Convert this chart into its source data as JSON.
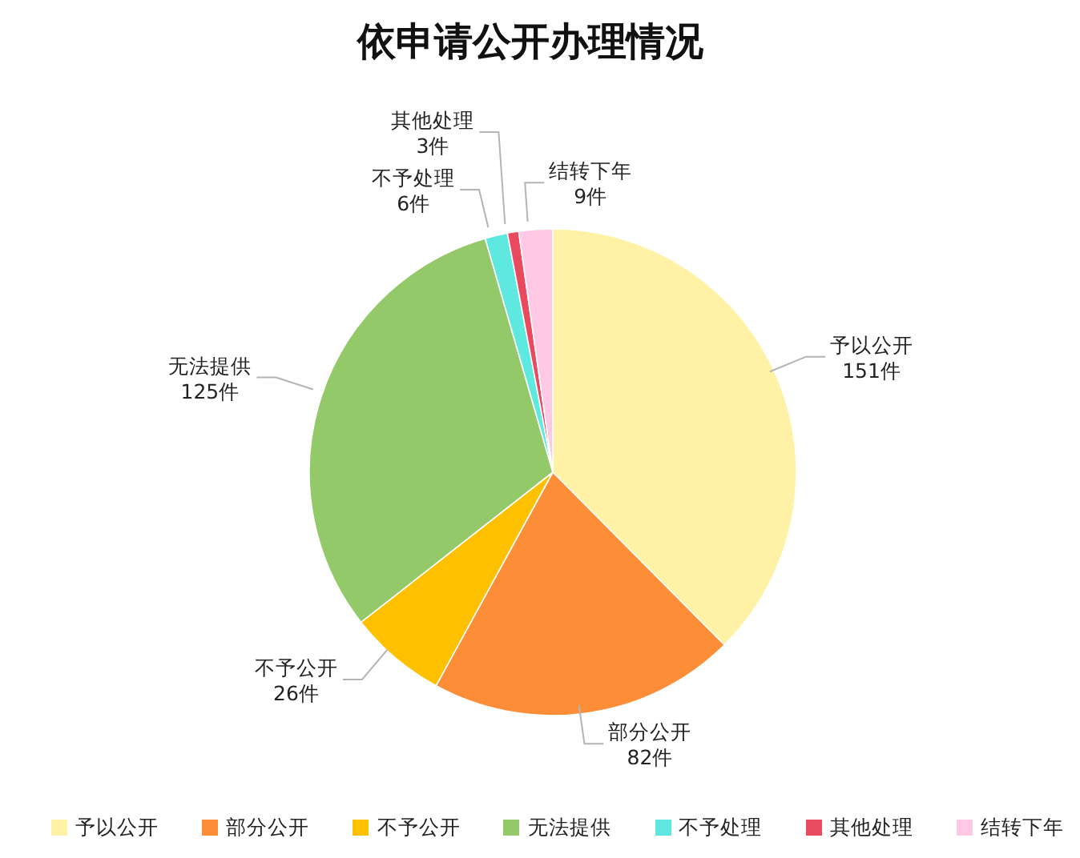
{
  "chart_data": {
    "type": "pie",
    "title": "依申请公开办理情况",
    "categories": [
      "予以公开",
      "部分公开",
      "不予公开",
      "无法提供",
      "不予处理",
      "其他处理",
      "结转下年"
    ],
    "values": [
      151,
      82,
      26,
      125,
      6,
      3,
      9
    ],
    "colors": [
      "#fff2a6",
      "#fd8d36",
      "#ffc000",
      "#94c96a",
      "#5ee8e0",
      "#e84a5f",
      "#ffc8e4"
    ],
    "value_labels": [
      "151件",
      "82件",
      "26件",
      "125件",
      "6件",
      "3件",
      "9件"
    ],
    "legend": "bottom"
  }
}
